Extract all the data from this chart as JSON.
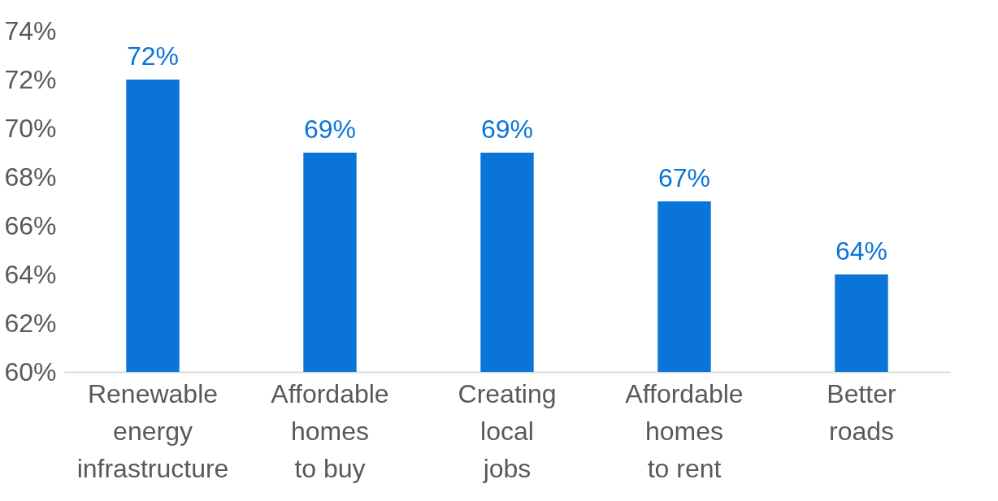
{
  "chart_data": {
    "type": "bar",
    "categories": [
      "Renewable energy infrastructure",
      "Affordable homes to buy",
      "Creating local jobs",
      "Affordable homes to rent",
      "Better roads"
    ],
    "values": [
      72,
      69,
      69,
      67,
      64
    ],
    "color": "#0a74d8",
    "value_labels": [
      "72%",
      "69%",
      "69%",
      "67%",
      "64%"
    ],
    "ylim": [
      60,
      74
    ],
    "yticks": [
      {
        "value": 60,
        "label": "60%"
      },
      {
        "value": 62,
        "label": "62%"
      },
      {
        "value": 64,
        "label": "64%"
      },
      {
        "value": 66,
        "label": "66%"
      },
      {
        "value": 68,
        "label": "68%"
      },
      {
        "value": 70,
        "label": "70%"
      },
      {
        "value": 72,
        "label": "72%"
      },
      {
        "value": 74,
        "label": "74%"
      }
    ],
    "grid": false
  }
}
